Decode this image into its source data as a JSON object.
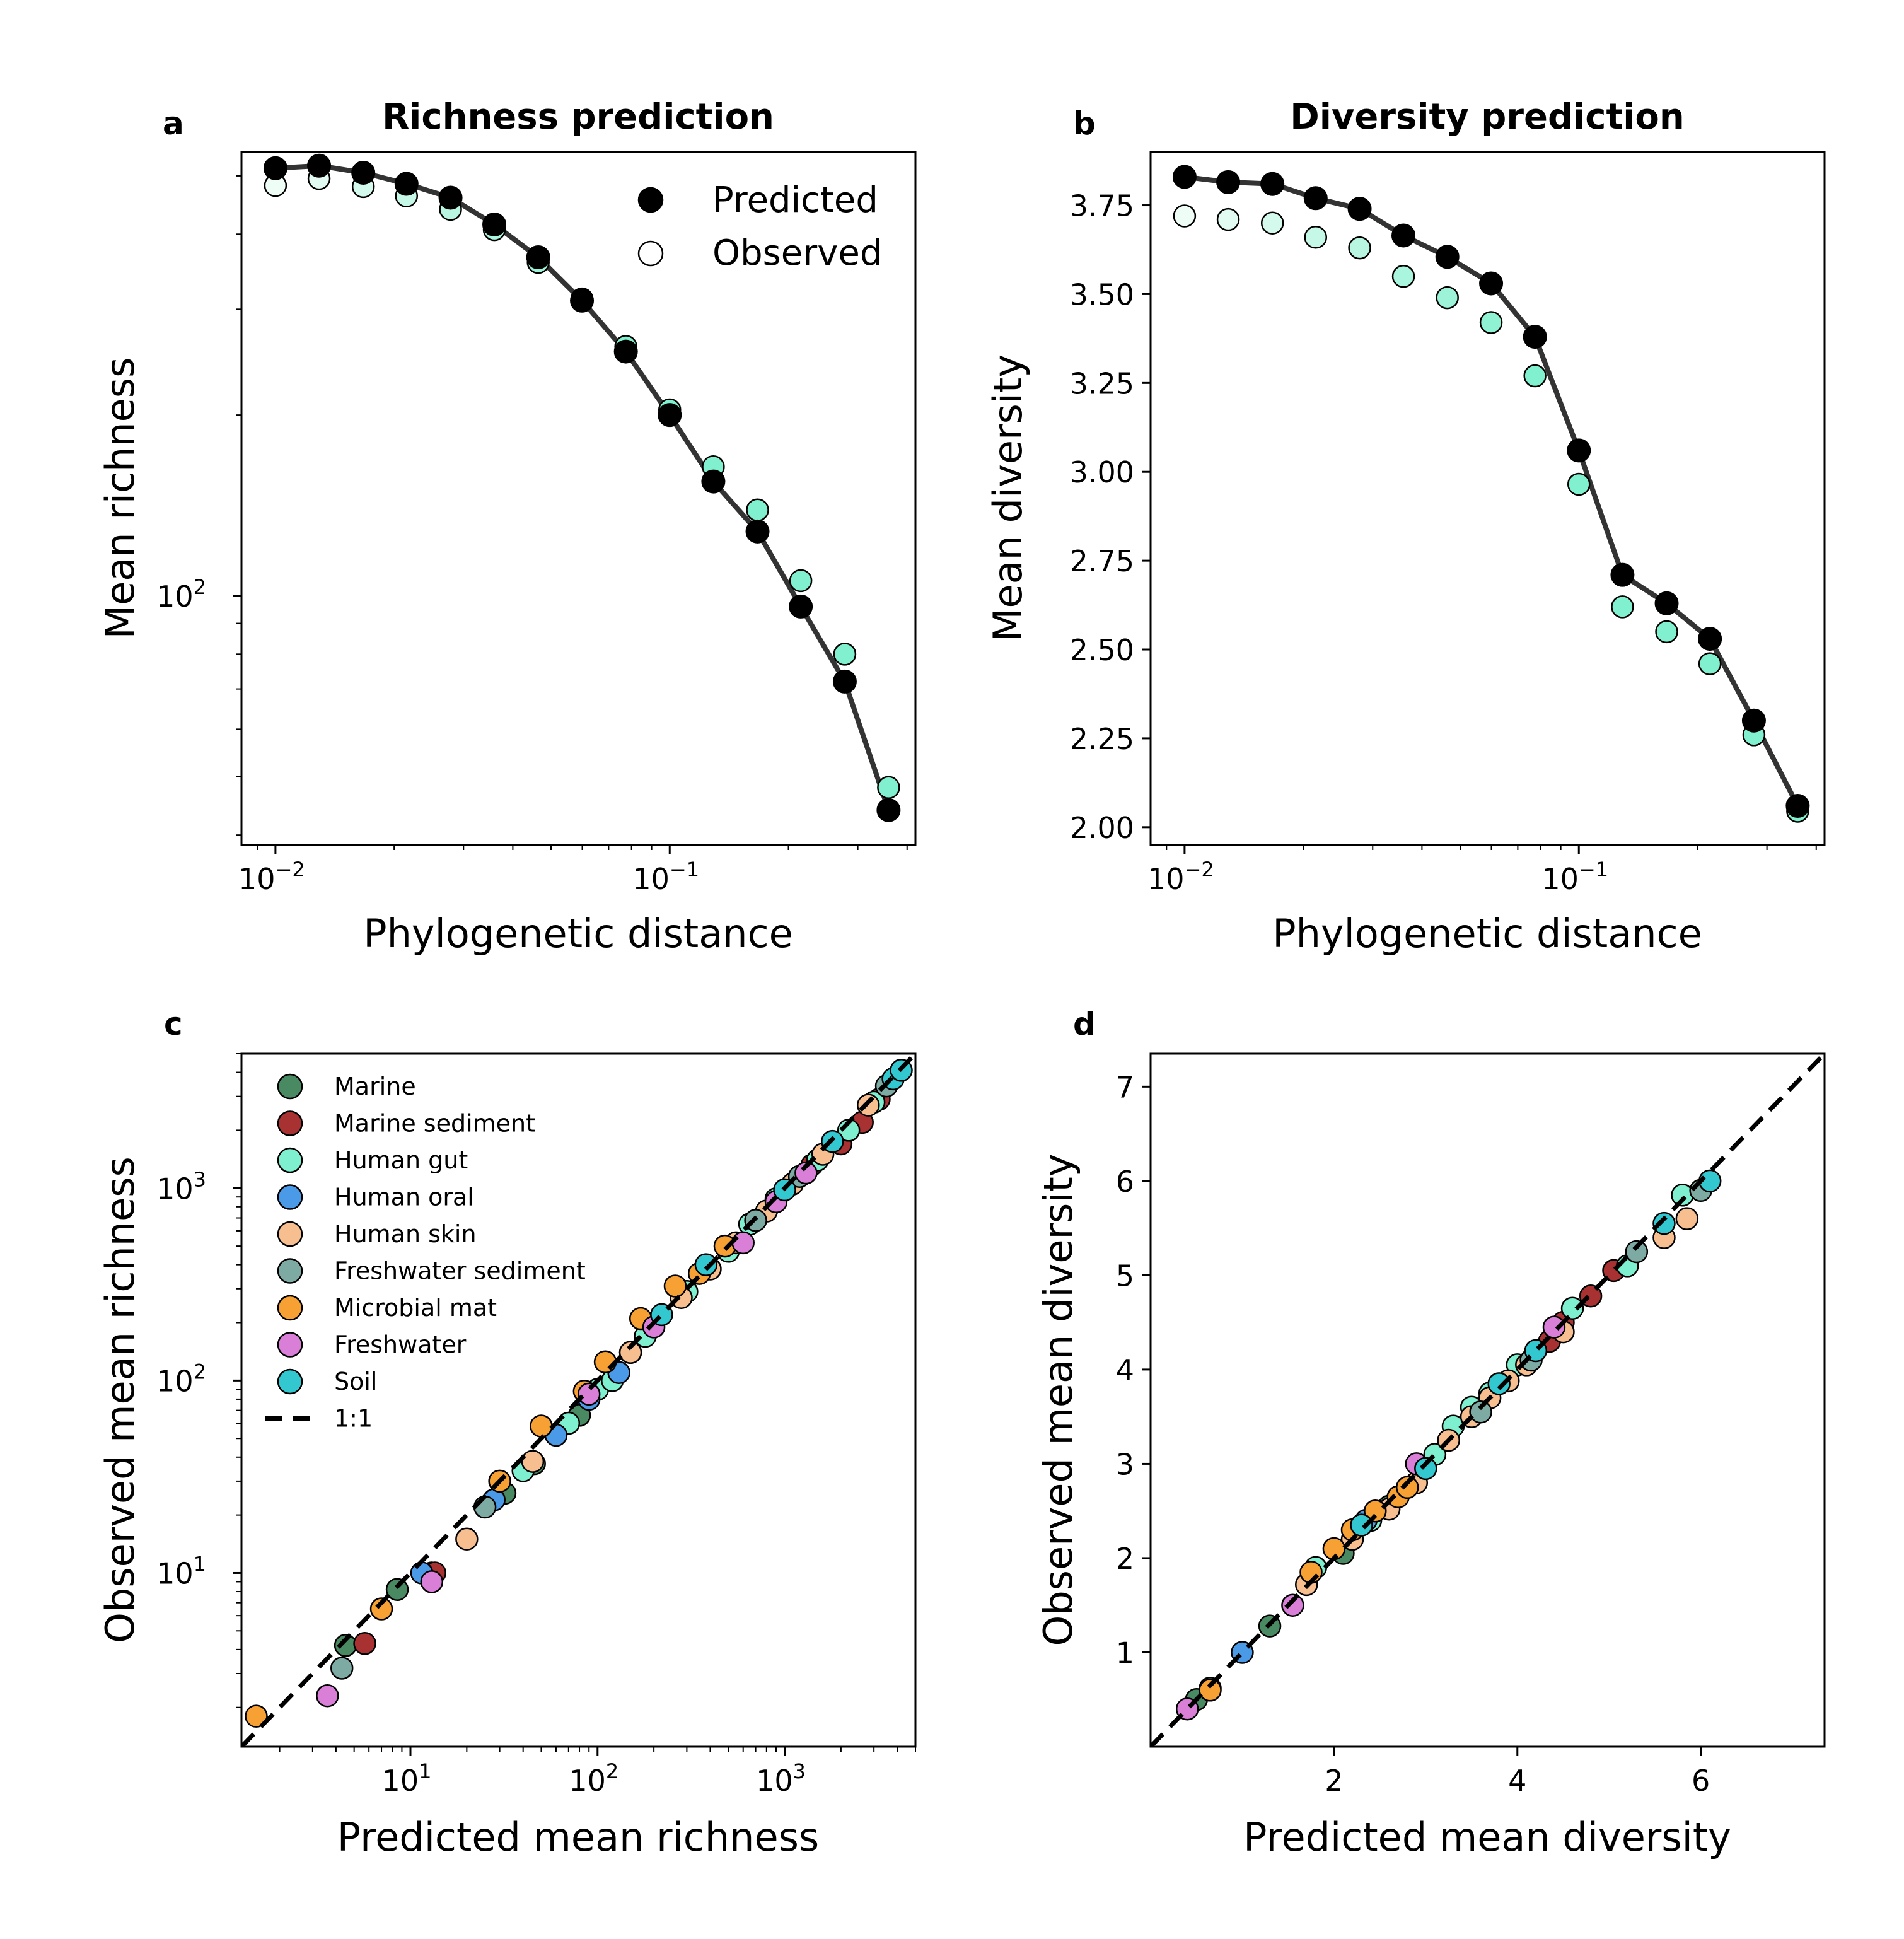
{
  "chart_data": [
    {
      "panel": "a",
      "type": "scatter",
      "title": "Richness prediction",
      "xlabel": "Phylogenetic distance",
      "ylabel": "Mean richness",
      "xscale": "log",
      "yscale": "log",
      "xlim": [
        0.0082,
        0.42
      ],
      "ylim": [
        38.5,
        548
      ],
      "xticks": [
        {
          "value": 0.01,
          "label": "10^{−2}"
        },
        {
          "value": 0.1,
          "label": "10^{−1}"
        }
      ],
      "yticks": [
        {
          "value": 100,
          "label": "10^{2}"
        }
      ],
      "legend": "top-right",
      "x": [
        0.01,
        0.0129,
        0.0167,
        0.0215,
        0.0278,
        0.0359,
        0.0464,
        0.0599,
        0.0774,
        0.1,
        0.129,
        0.167,
        0.215,
        0.278,
        0.359
      ],
      "series": [
        {
          "name": "Predicted",
          "style": "line+filled-marker",
          "color": "#000000",
          "values": [
            515,
            520,
            506,
            485,
            460,
            415,
            366,
            310,
            255,
            200,
            155,
            128,
            96,
            72,
            44
          ]
        },
        {
          "name": "Observed",
          "style": "open-marker",
          "values": [
            482,
            495,
            480,
            463,
            440,
            407,
            359,
            312,
            260,
            204,
            164,
            139,
            106,
            80,
            48
          ]
        }
      ]
    },
    {
      "panel": "b",
      "type": "scatter",
      "title": "Diversity prediction",
      "xlabel": "Phylogenetic distance",
      "ylabel": "Mean diversity",
      "xscale": "log",
      "yscale": "linear",
      "xlim": [
        0.0082,
        0.42
      ],
      "ylim": [
        1.95,
        3.9
      ],
      "xticks": [
        {
          "value": 0.01,
          "label": "10^{−2}"
        },
        {
          "value": 0.1,
          "label": "10^{−1}"
        }
      ],
      "yticks": [
        {
          "value": 2.0,
          "label": "2.00"
        },
        {
          "value": 2.25,
          "label": "2.25"
        },
        {
          "value": 2.5,
          "label": "2.50"
        },
        {
          "value": 2.75,
          "label": "2.75"
        },
        {
          "value": 3.0,
          "label": "3.00"
        },
        {
          "value": 3.25,
          "label": "3.25"
        },
        {
          "value": 3.5,
          "label": "3.50"
        },
        {
          "value": 3.75,
          "label": "3.75"
        }
      ],
      "x": [
        0.01,
        0.0129,
        0.0167,
        0.0215,
        0.0278,
        0.0359,
        0.0464,
        0.0599,
        0.0774,
        0.1,
        0.129,
        0.167,
        0.215,
        0.278,
        0.359
      ],
      "series": [
        {
          "style": "line+filled-marker",
          "color": "#000000",
          "values": [
            3.83,
            3.815,
            3.81,
            3.77,
            3.74,
            3.665,
            3.605,
            3.53,
            3.38,
            3.06,
            2.71,
            2.63,
            2.53,
            2.3,
            2.06
          ]
        },
        {
          "style": "open-marker",
          "values": [
            3.72,
            3.71,
            3.7,
            3.66,
            3.63,
            3.55,
            3.49,
            3.42,
            3.27,
            2.965,
            2.62,
            2.55,
            2.46,
            2.26,
            2.045
          ]
        }
      ]
    },
    {
      "panel": "c",
      "type": "scatter",
      "xlabel": "Predicted mean richness",
      "ylabel": "Observed mean richness",
      "xscale": "log",
      "yscale": "log",
      "xlim": [
        1.25,
        5000
      ],
      "ylim": [
        1.25,
        5000
      ],
      "xticks": [
        {
          "value": 10,
          "label": "10^{1}"
        },
        {
          "value": 100,
          "label": "10^{2}"
        },
        {
          "value": 1000,
          "label": "10^{3}"
        }
      ],
      "yticks": [
        {
          "value": 10,
          "label": "10^{1}"
        },
        {
          "value": 100,
          "label": "10^{2}"
        },
        {
          "value": 1000,
          "label": "10^{3}"
        }
      ],
      "legend": "top-left",
      "reference_line": {
        "name": "1:1",
        "style": "dashed"
      },
      "series": [
        {
          "name": "Marine",
          "color": "#4a8a62",
          "points": [
            [
              4.5,
              4.2
            ],
            [
              8.5,
              8.2
            ],
            [
              13,
              10
            ],
            [
              32,
              26
            ],
            [
              46,
              37
            ],
            [
              80,
              66
            ],
            [
              150,
              140
            ]
          ]
        },
        {
          "name": "Marine sediment",
          "color": "#a83232",
          "points": [
            [
              5.7,
              4.3
            ],
            [
              13.5,
              10
            ],
            [
              1400,
              1320
            ],
            [
              2000,
              1700
            ],
            [
              2600,
              2200
            ],
            [
              3200,
              2900
            ]
          ]
        },
        {
          "name": "Human gut",
          "color": "#7ef0cf",
          "points": [
            [
              40,
              34
            ],
            [
              70,
              60
            ],
            [
              100,
              90
            ],
            [
              120,
              100
            ],
            [
              180,
              170
            ],
            [
              300,
              290
            ],
            [
              500,
              470
            ],
            [
              650,
              650
            ],
            [
              900,
              880
            ],
            [
              1500,
              1400
            ],
            [
              2200,
              2000
            ],
            [
              3000,
              2800
            ]
          ]
        },
        {
          "name": "Human oral",
          "color": "#4b9ae8",
          "points": [
            [
              11.5,
              10
            ],
            [
              28,
              24
            ],
            [
              60,
              52
            ],
            [
              90,
              80
            ],
            [
              130,
              110
            ]
          ]
        },
        {
          "name": "Human skin",
          "color": "#f7bf8f",
          "points": [
            [
              20,
              15
            ],
            [
              45,
              38
            ],
            [
              150,
              140
            ],
            [
              280,
              270
            ],
            [
              400,
              380
            ],
            [
              550,
              520
            ],
            [
              800,
              760
            ],
            [
              1100,
              1050
            ],
            [
              1600,
              1500
            ],
            [
              2800,
              2700
            ]
          ]
        },
        {
          "name": "Freshwater sediment",
          "color": "#7eaaa4",
          "points": [
            [
              4.3,
              3.2
            ],
            [
              25,
              22
            ],
            [
              700,
              680
            ],
            [
              1200,
              1150
            ],
            [
              3500,
              3400
            ]
          ]
        },
        {
          "name": "Microbial mat",
          "color": "#f7a033",
          "points": [
            [
              1.5,
              1.8
            ],
            [
              7,
              6.5
            ],
            [
              30,
              30
            ],
            [
              50,
              58
            ],
            [
              85,
              88
            ],
            [
              110,
              125
            ],
            [
              170,
              210
            ],
            [
              260,
              310
            ],
            [
              350,
              360
            ],
            [
              480,
              500
            ]
          ]
        },
        {
          "name": "Freshwater",
          "color": "#d97fd7",
          "points": [
            [
              3.6,
              2.3
            ],
            [
              13,
              9
            ],
            [
              90,
              85
            ],
            [
              200,
              190
            ],
            [
              600,
              520
            ],
            [
              900,
              850
            ],
            [
              1300,
              1200
            ]
          ]
        },
        {
          "name": "Soil",
          "color": "#33c7cf",
          "points": [
            [
              220,
              220
            ],
            [
              380,
              400
            ],
            [
              1000,
              980
            ],
            [
              1800,
              1750
            ],
            [
              3800,
              3700
            ],
            [
              4200,
              4100
            ]
          ]
        }
      ]
    },
    {
      "panel": "d",
      "type": "scatter",
      "xlabel": "Predicted mean diversity",
      "ylabel": "Observed mean diversity",
      "xscale": "linear",
      "yscale": "linear",
      "xlim": [
        0.0,
        7.35
      ],
      "ylim": [
        0.0,
        7.35
      ],
      "xticks": [
        {
          "value": 2,
          "label": "2"
        },
        {
          "value": 4,
          "label": "4"
        },
        {
          "value": 6,
          "label": "6"
        }
      ],
      "yticks": [
        {
          "value": 1,
          "label": "1"
        },
        {
          "value": 2,
          "label": "2"
        },
        {
          "value": 3,
          "label": "3"
        },
        {
          "value": 4,
          "label": "4"
        },
        {
          "value": 5,
          "label": "5"
        },
        {
          "value": 6,
          "label": "6"
        },
        {
          "value": 7,
          "label": "7"
        }
      ],
      "reference_line": {
        "name": "1:1",
        "style": "dashed"
      },
      "series": [
        {
          "name": "Marine",
          "color": "#4a8a62",
          "points": [
            [
              0.5,
              0.5
            ],
            [
              0.65,
              0.62
            ],
            [
              1.3,
              1.28
            ],
            [
              2.1,
              2.05
            ],
            [
              2.6,
              2.55
            ]
          ]
        },
        {
          "name": "Marine sediment",
          "color": "#a83232",
          "points": [
            [
              4.5,
              4.5
            ],
            [
              4.8,
              4.78
            ],
            [
              5.05,
              5.05
            ],
            [
              4.35,
              4.3
            ]
          ]
        },
        {
          "name": "Human gut",
          "color": "#7ef0cf",
          "points": [
            [
              1.8,
              1.9
            ],
            [
              2.4,
              2.4
            ],
            [
              3.1,
              3.1
            ],
            [
              3.3,
              3.4
            ],
            [
              3.5,
              3.6
            ],
            [
              3.7,
              3.75
            ],
            [
              4.0,
              4.05
            ],
            [
              4.6,
              4.65
            ],
            [
              5.2,
              5.1
            ],
            [
              5.8,
              5.85
            ]
          ]
        },
        {
          "name": "Human oral",
          "color": "#4b9ae8",
          "points": [
            [
              1.0,
              1.0
            ],
            [
              2.35,
              2.4
            ]
          ]
        },
        {
          "name": "Human skin",
          "color": "#f7bf8f",
          "points": [
            [
              1.7,
              1.72
            ],
            [
              2.2,
              2.2
            ],
            [
              2.6,
              2.52
            ],
            [
              2.9,
              2.8
            ],
            [
              3.25,
              3.25
            ],
            [
              3.5,
              3.5
            ],
            [
              3.7,
              3.7
            ],
            [
              3.9,
              3.88
            ],
            [
              4.1,
              4.05
            ],
            [
              4.5,
              4.4
            ],
            [
              5.6,
              5.4
            ],
            [
              5.85,
              5.6
            ]
          ]
        },
        {
          "name": "Freshwater sediment",
          "color": "#7eaaa4",
          "points": [
            [
              3.6,
              3.55
            ],
            [
              4.15,
              4.1
            ],
            [
              5.3,
              5.25
            ],
            [
              6.0,
              5.9
            ]
          ]
        },
        {
          "name": "Microbial mat",
          "color": "#f7a033",
          "points": [
            [
              0.65,
              0.6
            ],
            [
              1.75,
              1.85
            ],
            [
              2.0,
              2.1
            ],
            [
              2.2,
              2.3
            ],
            [
              2.45,
              2.5
            ],
            [
              2.7,
              2.65
            ],
            [
              2.8,
              2.75
            ]
          ]
        },
        {
          "name": "Freshwater",
          "color": "#d97fd7",
          "points": [
            [
              0.4,
              0.4
            ],
            [
              1.55,
              1.5
            ],
            [
              2.9,
              3.0
            ],
            [
              4.4,
              4.45
            ]
          ]
        },
        {
          "name": "Soil",
          "color": "#33c7cf",
          "points": [
            [
              2.3,
              2.35
            ],
            [
              3.0,
              2.95
            ],
            [
              3.8,
              3.85
            ],
            [
              4.2,
              4.2
            ],
            [
              5.6,
              5.55
            ],
            [
              6.1,
              6.0
            ]
          ]
        }
      ]
    }
  ],
  "legend_labels": {
    "predicted": "Predicted",
    "observed": "Observed",
    "one_to_one": "1:1"
  },
  "panel_letters": {
    "a": "a",
    "b": "b",
    "c": "c",
    "d": "d"
  }
}
